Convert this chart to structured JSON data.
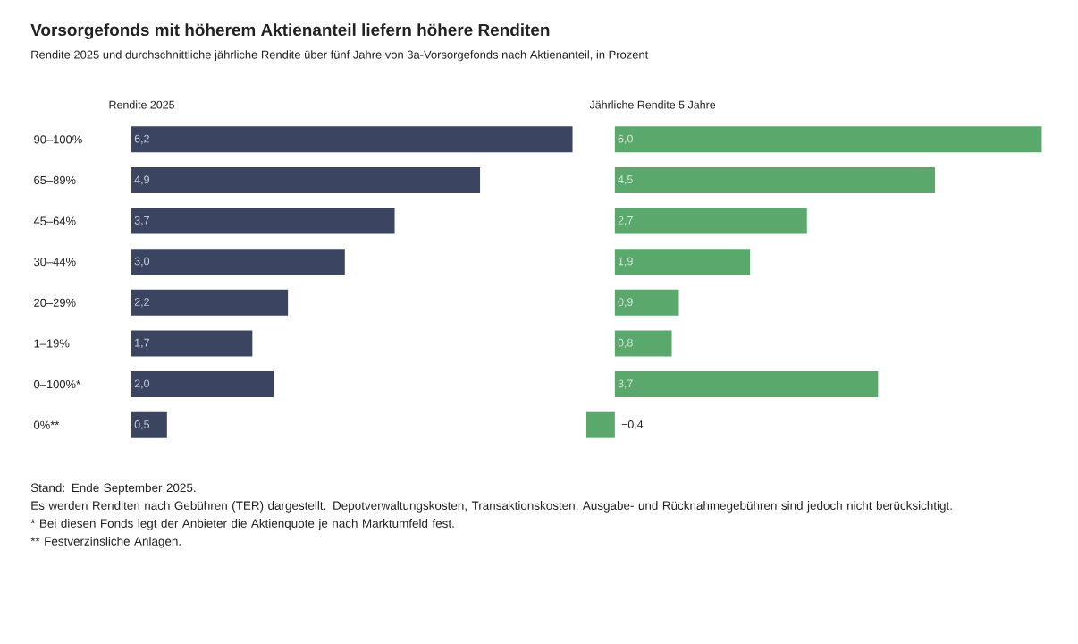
{
  "chart_data": [
    {
      "type": "other",
      "title": "Vorsorgefonds mit höherem Aktienanteil liefern höhere Renditen",
      "subtitle": "Rendite 2025 und durchschnittliche jährliche Rendite über fünf Jahre von 3a-Vorsorgefonds nach Aktienanteil, in Prozent",
      "annotations": [
        "Stand: Ende September 2025.",
        "Es werden Renditen nach Gebühren (TER) dargestellt. Depotverwaltungskosten, Transaktionskosten, Ausgabe- und Rücknahmegebühren sind jedoch nicht berücksichtigt.",
        "* Bei diesen Fonds legt der Anbieter die Aktienquote je nach Marktumfeld fest.",
        "** Festverzinsliche Anlagen."
      ]
    },
    {
      "type": "bar",
      "orientation": "horizontal",
      "title": "Rendite 2025",
      "categories": [
        "90–100%",
        "65–89%",
        "45–64%",
        "30–44%",
        "20–29%",
        "1–19%",
        "0–100%*",
        "0%**"
      ],
      "values": [
        6.2,
        4.9,
        3.7,
        3.0,
        2.2,
        1.7,
        2.0,
        0.5
      ],
      "value_labels": [
        "6,2",
        "4,9",
        "3,7",
        "3,0",
        "2,2",
        "1,7",
        "2,0",
        "0,5"
      ],
      "color": "#3b4461",
      "tick_labels": "y"
    },
    {
      "type": "bar",
      "orientation": "horizontal",
      "title": "Jährliche Rendite 5 Jahre",
      "categories": [
        null,
        null,
        null,
        null,
        null,
        null,
        null,
        null
      ],
      "values": [
        6.0,
        4.5,
        2.7,
        1.9,
        0.9,
        0.8,
        3.7,
        -0.4
      ],
      "value_labels": [
        "6,0",
        "4,5",
        "2,7",
        "1,9",
        "0,9",
        "0,8",
        "3,7",
        "−0,4"
      ],
      "color": "#5aa86c",
      "tick_labels": false
    }
  ]
}
